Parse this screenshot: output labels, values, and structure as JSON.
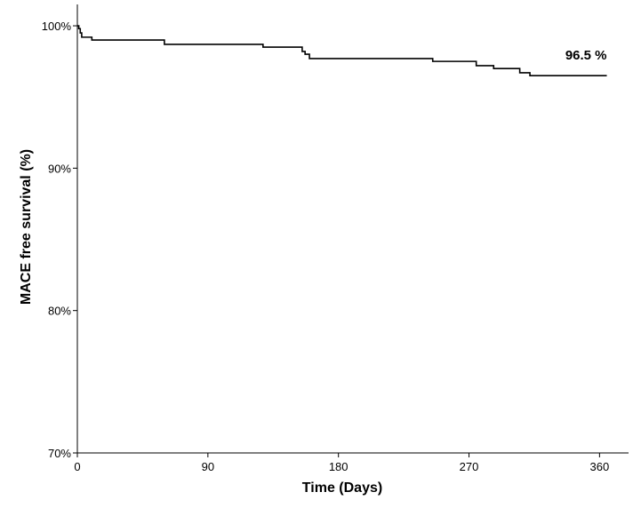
{
  "chart_data": {
    "type": "line",
    "title": "",
    "xlabel": "Time (Days)",
    "ylabel": "MACE free survival (%)",
    "xlim": [
      0,
      380
    ],
    "ylim": [
      70,
      101.5
    ],
    "xticks": [
      0,
      90,
      180,
      270,
      360
    ],
    "xtick_labels": [
      "0",
      "90",
      "180",
      "270",
      "360"
    ],
    "yticks": [
      70,
      80,
      90,
      100
    ],
    "ytick_labels": [
      "70%",
      "80%",
      "90%",
      "100%"
    ],
    "grid": false,
    "legend": "none",
    "series": [
      {
        "style": "step",
        "color": "#000000",
        "x": [
          0,
          1,
          2,
          3,
          10,
          60,
          128,
          155,
          157,
          160,
          245,
          275,
          287,
          305,
          312,
          365
        ],
        "y": [
          100,
          99.8,
          99.5,
          99.2,
          99.0,
          98.7,
          98.5,
          98.2,
          98.0,
          97.7,
          97.5,
          97.2,
          97.0,
          96.7,
          96.5,
          96.5
        ]
      }
    ],
    "annotations": [
      {
        "text": "96.5 %",
        "x": 365,
        "y": 96.5,
        "placement": "above-end"
      }
    ]
  }
}
